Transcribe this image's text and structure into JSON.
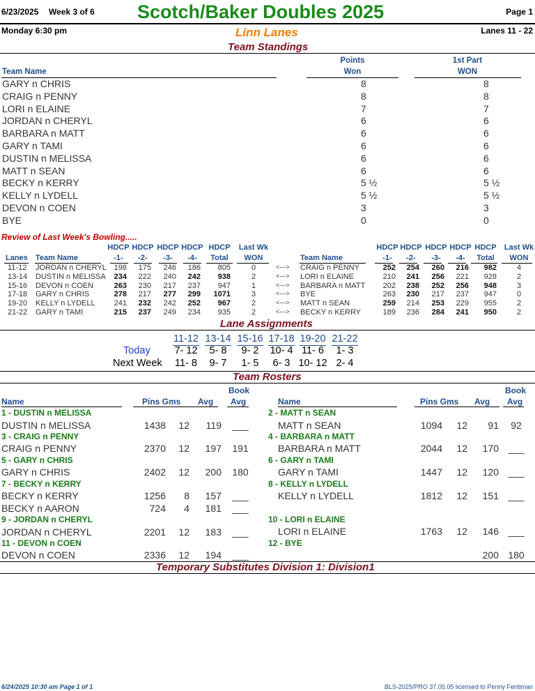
{
  "header": {
    "date": "6/23/2025",
    "week": "Week 3 of 6",
    "title": "Scotch/Baker Doubles  2025",
    "page": "Page 1",
    "day_time": "Monday   6:30 pm",
    "center": "Linn Lanes",
    "lanes": "Lanes 11 - 22"
  },
  "standings": {
    "section_title": "Team Standings",
    "col_team": "Team Name",
    "col_points_1": "Points",
    "col_points_2": "Won",
    "col_part_1": "1st Part",
    "col_part_2": "WON",
    "rows": [
      {
        "team": "GARY n CHRIS",
        "points": "8",
        "part": "8"
      },
      {
        "team": "CRAIG n PENNY",
        "points": "8",
        "part": "8"
      },
      {
        "team": "LORI n ELAINE",
        "points": "7",
        "part": "7"
      },
      {
        "team": "JORDAN n CHERYL",
        "points": "6",
        "part": "6"
      },
      {
        "team": "BARBARA n MATT",
        "points": "6",
        "part": "6"
      },
      {
        "team": "GARY n TAMI",
        "points": "6",
        "part": "6"
      },
      {
        "team": "DUSTIN n MELISSA",
        "points": "6",
        "part": "6"
      },
      {
        "team": "MATT n SEAN",
        "points": "6",
        "part": "6"
      },
      {
        "team": "BECKY n KERRY",
        "points": "5 ½",
        "part": "5 ½"
      },
      {
        "team": "KELLY n LYDELL",
        "points": "5 ½",
        "part": "5 ½"
      },
      {
        "team": "DEVON n COEN",
        "points": "3",
        "part": "3"
      },
      {
        "team": "BYE",
        "points": "0",
        "part": "0"
      }
    ]
  },
  "review": {
    "title": "Review of Last Week's Bowling.....",
    "h_lanes": "Lanes",
    "h_team": "Team Name",
    "h_hdcp": "HDCP",
    "h_g1": "-1-",
    "h_g2": "-2-",
    "h_g3": "-3-",
    "h_g4": "-4-",
    "h_total": "Total",
    "h_lastwk": "Last Wk",
    "h_won": "WON",
    "arrow": "<--->",
    "rows": [
      {
        "lanes": "11-12",
        "left": {
          "team": "JORDAN n CHERYL",
          "g": [
            "198",
            "175",
            "246",
            "186"
          ],
          "b": [
            false,
            false,
            false,
            false
          ],
          "total": "805",
          "tb": false,
          "won": "0"
        },
        "right": {
          "team": "CRAIG n PENNY",
          "g": [
            "252",
            "254",
            "260",
            "216"
          ],
          "b": [
            true,
            true,
            true,
            true
          ],
          "total": "982",
          "tb": true,
          "won": "4"
        }
      },
      {
        "lanes": "13-14",
        "left": {
          "team": "DUSTIN n MELISSA",
          "g": [
            "234",
            "222",
            "240",
            "242"
          ],
          "b": [
            true,
            false,
            false,
            true
          ],
          "total": "938",
          "tb": true,
          "won": "2"
        },
        "right": {
          "team": "LORI n ELAINE",
          "g": [
            "210",
            "241",
            "256",
            "221"
          ],
          "b": [
            false,
            true,
            true,
            false
          ],
          "total": "928",
          "tb": false,
          "won": "2"
        }
      },
      {
        "lanes": "15-16",
        "left": {
          "team": "DEVON n COEN",
          "g": [
            "263",
            "230",
            "217",
            "237"
          ],
          "b": [
            true,
            false,
            false,
            false
          ],
          "total": "947",
          "tb": false,
          "won": "1"
        },
        "right": {
          "team": "BARBARA n MATT",
          "g": [
            "202",
            "238",
            "252",
            "256"
          ],
          "b": [
            false,
            true,
            true,
            true
          ],
          "total": "948",
          "tb": true,
          "won": "3"
        }
      },
      {
        "lanes": "17-18",
        "left": {
          "team": "GARY n CHRIS",
          "g": [
            "278",
            "217",
            "277",
            "299"
          ],
          "b": [
            true,
            false,
            true,
            true
          ],
          "total": "1071",
          "tb": true,
          "won": "3"
        },
        "right": {
          "team": "BYE",
          "g": [
            "263",
            "230",
            "217",
            "237"
          ],
          "b": [
            false,
            true,
            false,
            false
          ],
          "total": "947",
          "tb": false,
          "won": "0"
        }
      },
      {
        "lanes": "19-20",
        "left": {
          "team": "KELLY n LYDELL",
          "g": [
            "241",
            "232",
            "242",
            "252"
          ],
          "b": [
            false,
            true,
            false,
            true
          ],
          "total": "967",
          "tb": true,
          "won": "2"
        },
        "right": {
          "team": "MATT n SEAN",
          "g": [
            "259",
            "214",
            "253",
            "229"
          ],
          "b": [
            true,
            false,
            true,
            false
          ],
          "total": "955",
          "tb": false,
          "won": "2"
        }
      },
      {
        "lanes": "21-22",
        "left": {
          "team": "GARY n TAMI",
          "g": [
            "215",
            "237",
            "249",
            "234"
          ],
          "b": [
            true,
            true,
            false,
            false
          ],
          "total": "935",
          "tb": false,
          "won": "2"
        },
        "right": {
          "team": "BECKY n KERRY",
          "g": [
            "189",
            "236",
            "284",
            "241"
          ],
          "b": [
            false,
            false,
            true,
            true
          ],
          "total": "950",
          "tb": true,
          "won": "2"
        }
      }
    ]
  },
  "lanes": {
    "section_title": "Lane Assignments",
    "pairs": [
      "11-12",
      "13-14",
      "15-16",
      "17-18",
      "19-20",
      "21-22"
    ],
    "today_label": "Today",
    "today": [
      "7- 12",
      "5- 8",
      "9- 2",
      "10- 4",
      "11- 6",
      "1- 3"
    ],
    "next_label": "Next Week",
    "next": [
      "11- 8",
      "9- 7",
      "1- 5",
      "6- 3",
      "10- 12",
      "2- 4"
    ]
  },
  "rosters": {
    "section_title": "Team Rosters",
    "h_name": "Name",
    "h_pins": "Pins  Gms",
    "h_avg": "Avg",
    "h_book1": "Book",
    "h_book2": "Avg",
    "left": [
      {
        "type": "head",
        "text": "1 - DUSTIN n MELISSA"
      },
      {
        "type": "row",
        "name": "DUSTIN n MELISSA",
        "pins": "1438",
        "gms": "12",
        "avg": "119",
        "book": "___"
      },
      {
        "type": "head",
        "text": "3 - CRAIG n PENNY"
      },
      {
        "type": "row",
        "name": "CRAIG n PENNY",
        "pins": "2370",
        "gms": "12",
        "avg": "197",
        "book": "191"
      },
      {
        "type": "head",
        "text": "5 - GARY n CHRIS"
      },
      {
        "type": "row",
        "name": "GARY n CHRIS",
        "pins": "2402",
        "gms": "12",
        "avg": "200",
        "book": "180"
      },
      {
        "type": "head",
        "text": "7 - BECKY n KERRY"
      },
      {
        "type": "row",
        "name": "BECKY n KERRY",
        "pins": "1256",
        "gms": "8",
        "avg": "157",
        "book": "___"
      },
      {
        "type": "row",
        "name": "BECKY n AARON",
        "pins": "724",
        "gms": "4",
        "avg": "181",
        "book": "___"
      },
      {
        "type": "head",
        "text": "9 - JORDAN n CHERYL"
      },
      {
        "type": "row",
        "name": "JORDAN n CHERYL",
        "pins": "2201",
        "gms": "12",
        "avg": "183",
        "book": "___"
      },
      {
        "type": "head",
        "text": "11 - DEVON n COEN"
      },
      {
        "type": "row",
        "name": "DEVON n COEN",
        "pins": "2336",
        "gms": "12",
        "avg": "194",
        "book": "___"
      }
    ],
    "right": [
      {
        "type": "head",
        "text": "2 - MATT n SEAN"
      },
      {
        "type": "row",
        "name": "MATT n SEAN",
        "pins": "1094",
        "gms": "12",
        "avg": "91",
        "book": "92"
      },
      {
        "type": "head",
        "text": "4 - BARBARA n MATT"
      },
      {
        "type": "row",
        "name": "BARBARA n MATT",
        "pins": "2044",
        "gms": "12",
        "avg": "170",
        "book": "___"
      },
      {
        "type": "head",
        "text": "6 - GARY n TAMI"
      },
      {
        "type": "row",
        "name": "GARY n TAMI",
        "pins": "1447",
        "gms": "12",
        "avg": "120",
        "book": "___"
      },
      {
        "type": "head",
        "text": "8 - KELLY n LYDELL"
      },
      {
        "type": "row",
        "name": "KELLY n LYDELL",
        "pins": "1812",
        "gms": "12",
        "avg": "151",
        "book": "___"
      },
      {
        "type": "gap"
      },
      {
        "type": "head",
        "text": "10 - LORI n ELAINE"
      },
      {
        "type": "row",
        "name": "LORI n ELAINE",
        "pins": "1763",
        "gms": "12",
        "avg": "146",
        "book": "___"
      },
      {
        "type": "head",
        "text": "12 - BYE"
      },
      {
        "type": "row",
        "name": "",
        "pins": "",
        "gms": "",
        "avg": "200",
        "book": "180"
      }
    ]
  },
  "temp_subs": "Temporary Substitutes   Division 1: Division1",
  "footer": {
    "left": "6/24/2025  10:30 am  Page 1 of 1",
    "right": "BLS-2025/PRO 37.05.05 licensed to Penny Fentiman"
  }
}
